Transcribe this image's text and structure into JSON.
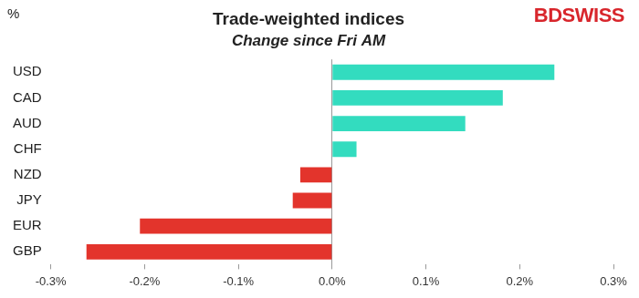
{
  "chart_data": {
    "type": "bar",
    "orientation": "horizontal",
    "title": "Trade-weighted indices",
    "subtitle": "Change since Fri AM",
    "y_label": "%",
    "logo": "BDSWISS",
    "categories": [
      "USD",
      "CAD",
      "AUD",
      "CHF",
      "NZD",
      "JPY",
      "EUR",
      "GBP"
    ],
    "values": [
      0.237,
      0.182,
      0.142,
      0.026,
      -0.034,
      -0.042,
      -0.205,
      -0.262
    ],
    "colors": [
      "#33dcbf",
      "#33dcbf",
      "#33dcbf",
      "#33dcbf",
      "#e3342c",
      "#e3342c",
      "#e3342c",
      "#e3342c"
    ],
    "xlim": [
      -0.3,
      0.3
    ],
    "xticks": [
      {
        "value": -0.3,
        "label": "-0.3%"
      },
      {
        "value": -0.2,
        "label": "-0.2%"
      },
      {
        "value": -0.1,
        "label": "-0.1%"
      },
      {
        "value": 0,
        "label": "0.0%"
      },
      {
        "value": 0.1,
        "label": "0.1%"
      },
      {
        "value": 0.2,
        "label": "0.2%"
      },
      {
        "value": 0.3,
        "label": "0.3%"
      }
    ],
    "grid": false,
    "data_labels": false
  }
}
